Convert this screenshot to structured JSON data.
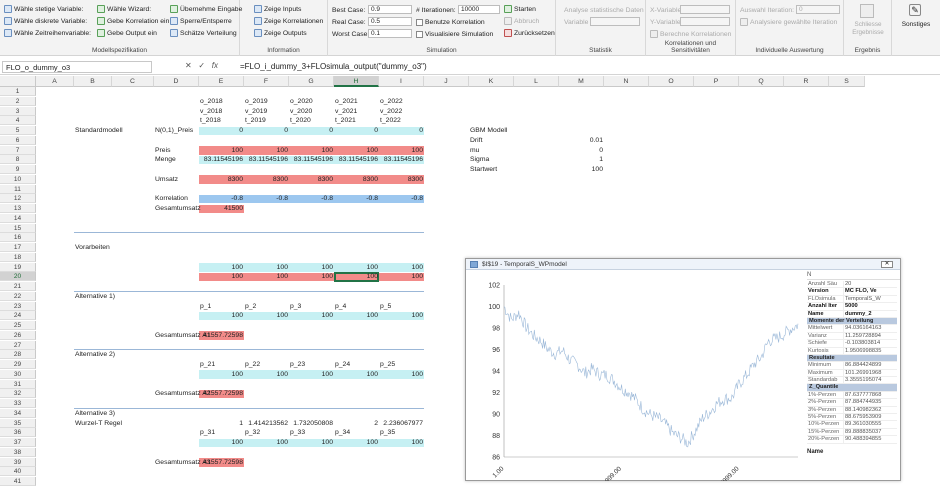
{
  "ribbon": {
    "model_spec": {
      "group_label": "Modellspezifikation",
      "items": [
        "Wähle stetige Variable:",
        "Wähle diskrete Variable:",
        "Wähle Zeitreihenvariable:",
        "Wähle Wizard:",
        "Gebe Korrelation ein",
        "Gebe Output ein",
        "Übernehme Eingabe",
        "Sperre/Entsperre",
        "Schätze Verteilung"
      ]
    },
    "information": {
      "group_label": "Information",
      "items": [
        "Zeige Inputs",
        "Zeige Korrelationen",
        "Zeige Outputs"
      ]
    },
    "simulation": {
      "group_label": "Simulation",
      "best_label": "Best Case:",
      "best_value": "0.9",
      "real_label": "Real Case:",
      "real_value": "0.5",
      "worst_label": "Worst Case:",
      "worst_value": "0.1",
      "iter_label": "# Iterationen:",
      "iter_value": "10000",
      "corr_label": "Benutze Korrelation",
      "vis_label": "Visualisiere Simulation",
      "start": "Starten",
      "abort": "Abbruch",
      "reset": "Zurücksetzen"
    },
    "statistics": {
      "group_label": "Statistik",
      "analysis_label": "Analyse statistische Daten",
      "variable_label": "Variable"
    },
    "correlation": {
      "group_label": "Korrelationen und Sensitivitäten",
      "xvar": "X-Variable",
      "yvar": "Y-Variable",
      "calc": "Berechne Korrelationen"
    },
    "individual": {
      "group_label": "Individuelle Auswertung",
      "select_label": "Auswahl Iteration:",
      "select_value": "0",
      "analyze": "Analysiere gewählte Iteration"
    },
    "result": {
      "group_label": "Ergebnis",
      "close": "Schliesse Ergebnisse"
    },
    "misc": {
      "label": "Sonstiges"
    }
  },
  "formula_bar": {
    "cell_ref": "FLO_o_dummy_o3",
    "fx": "fx",
    "formula": "=FLO_i_dummy_3+FLOsimula_output(\"dummy_o3\")"
  },
  "columns": [
    "A",
    "B",
    "C",
    "D",
    "E",
    "F",
    "G",
    "H",
    "I",
    "J",
    "K",
    "L",
    "M",
    "N",
    "O",
    "P",
    "Q",
    "R",
    "S"
  ],
  "rows": [
    "1",
    "2",
    "3",
    "4",
    "5",
    "6",
    "7",
    "8",
    "9",
    "10",
    "11",
    "12",
    "13",
    "14",
    "15",
    "16",
    "17",
    "18",
    "19",
    "20",
    "21",
    "22",
    "23",
    "24",
    "25",
    "26",
    "27",
    "28",
    "29",
    "30",
    "31",
    "32",
    "33",
    "34",
    "35",
    "36",
    "37",
    "38",
    "39",
    "40",
    "41"
  ],
  "cells": {
    "r2": [
      "o_2018",
      "o_2019",
      "o_2020",
      "o_2021",
      "o_2022"
    ],
    "r3": [
      "v_2018",
      "v_2019",
      "v_2020",
      "v_2021",
      "v_2022"
    ],
    "r4": [
      "t_2018",
      "t_2019",
      "t_2020",
      "t_2021",
      "t_2022"
    ],
    "standardmodell": "Standardmodell",
    "n01": "N(0,1)_Preis",
    "r5": [
      "0",
      "0",
      "0",
      "0",
      "0"
    ],
    "preis": "Preis",
    "r7": [
      "100",
      "100",
      "100",
      "100",
      "100"
    ],
    "menge": "Menge",
    "r8": [
      "83.11545196",
      "83.11545196",
      "83.11545196",
      "83.11545196",
      "83.11545196"
    ],
    "umsatz": "Umsatz",
    "r10": [
      "8300",
      "8300",
      "8300",
      "8300",
      "8300"
    ],
    "korrelation": "Korrelation",
    "r12": [
      "-0.8",
      "-0.8",
      "-0.8",
      "-0.8",
      "-0.8"
    ],
    "gesamtumsatz": "Gesamtumsatz",
    "r13": "41500",
    "gbm": "GBM Modell",
    "drift": "Drift",
    "drift_v": "0.01",
    "mu": "mu",
    "mu_v": "0",
    "sigma": "Sigma",
    "sigma_v": "1",
    "startwert": "Startwert",
    "startwert_v": "100",
    "vorarbeiten": "Vorarbeiten",
    "r19": [
      "100",
      "100",
      "100",
      "100",
      "100"
    ],
    "r20": [
      "100",
      "100",
      "100",
      "100",
      "100"
    ],
    "alt1": "Alternative 1)",
    "r23": [
      "p_1",
      "p_2",
      "p_3",
      "p_4",
      "p_5"
    ],
    "r24": [
      "100",
      "100",
      "100",
      "100",
      "100"
    ],
    "gsa1": "Gesamtumsatz A1",
    "gsa1_v": "41557.72598",
    "alt2": "Alternative 2)",
    "r29": [
      "p_21",
      "p_22",
      "p_23",
      "p_24",
      "p_25"
    ],
    "r30": [
      "100",
      "100",
      "100",
      "100",
      "100"
    ],
    "gsa2": "Gesamtumsatz A2",
    "gsa2_v": "41557.72598",
    "alt3": "Alternative 3)",
    "wurzel": "Wurzel-T Regel",
    "r35": [
      "1",
      "1.414213562",
      "1.732050808",
      "2",
      "2.236067977"
    ],
    "r36": [
      "p_31",
      "p_32",
      "p_33",
      "p_34",
      "p_35"
    ],
    "r37": [
      "100",
      "100",
      "100",
      "100",
      "100"
    ],
    "gsa3": "Gesamtumsatz A3",
    "gsa3_v": "41557.72598"
  },
  "colors": {
    "cyan": "#c6f0f3",
    "red": "#f28b89",
    "blue": "#9cc7ef",
    "excel_green": "#217346",
    "series": "#9bb8d8"
  },
  "chart_window": {
    "title": "$I$19 - TemporalS_WPmodel",
    "close": "✕",
    "chart_data": {
      "type": "line",
      "y_ticks": [
        "102",
        "100",
        "98",
        "96",
        "94",
        "92",
        "90",
        "88",
        "86"
      ],
      "x_ticks": [
        "1.00",
        "1999.00",
        "3999.00"
      ],
      "ylim": [
        86,
        102
      ],
      "xlim": [
        1,
        5000
      ],
      "series": [
        {
          "values": [
            100,
            98.8,
            99.4,
            98.1,
            97.3,
            96.8,
            96.0,
            95.6,
            95.9,
            95.0,
            94.6,
            93.8,
            94.2,
            93.7,
            93.6,
            93.1,
            92.4,
            92.0,
            91.3,
            90.4,
            89.9,
            89.6,
            89.0,
            88.2,
            87.8,
            87.3,
            88.4,
            89.6,
            90.2,
            91.0,
            91.4,
            91.5,
            92.8,
            93.6,
            94.6,
            95.3,
            96.8,
            97.0,
            97.4,
            97.9,
            98.3
          ]
        }
      ]
    },
    "props_header": "N",
    "props": [
      {
        "k": "Anzahl Säu",
        "v": "20"
      },
      {
        "k": "Version",
        "v": "MC FLO, Ve",
        "bold": true
      },
      {
        "k": "FLOsimula",
        "v": "TemporalS_W"
      },
      {
        "k": "Anzahl Iter",
        "v": "5000",
        "bold": true
      },
      {
        "k": "Name",
        "v": "dummy_2",
        "bold": true
      },
      {
        "sec": "Momente der Verteilung"
      },
      {
        "k": "Mittelwert",
        "v": "94.036164163"
      },
      {
        "k": "Varianz",
        "v": "11.259728894"
      },
      {
        "k": "Schiefe",
        "v": "-0.103803814"
      },
      {
        "k": "Kurtosis",
        "v": "1.9506998835"
      },
      {
        "sec": "Resultate"
      },
      {
        "k": "Minimum",
        "v": "86.884424899"
      },
      {
        "k": "Maximum",
        "v": "101.26991968"
      },
      {
        "k": "Standardab",
        "v": "3.3555195074"
      },
      {
        "sec": "Z_Quantile"
      },
      {
        "k": "1%-Perzen",
        "v": "87.637777868"
      },
      {
        "k": "2%-Perzen",
        "v": "87.884744935"
      },
      {
        "k": "3%-Perzen",
        "v": "88.140982362"
      },
      {
        "k": "5%-Perzen",
        "v": "88.675953909"
      },
      {
        "k": "10%-Perzen",
        "v": "89.361030555"
      },
      {
        "k": "15%-Perzen",
        "v": "89.888835037"
      },
      {
        "k": "20%-Perzen",
        "v": "90.488394855"
      }
    ],
    "name_label": "Name"
  }
}
